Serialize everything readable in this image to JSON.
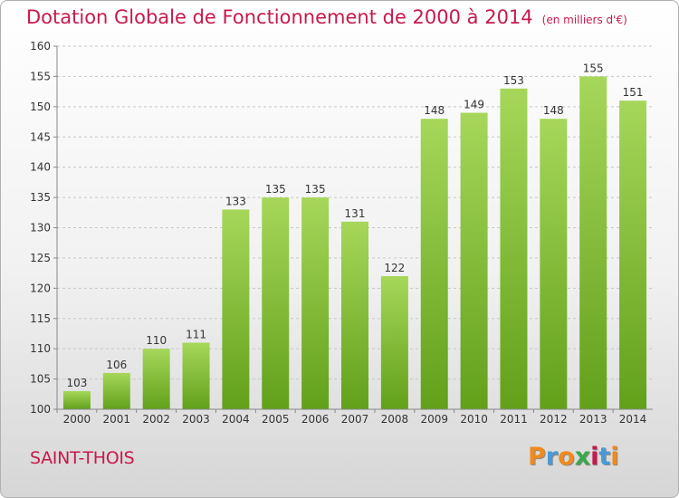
{
  "title": "Dotation Globale de Fonctionnement de 2000 à 2014",
  "unit": "(en milliers d'€)",
  "location": "SAINT-THOIS",
  "logo": {
    "letters": [
      "P",
      "r",
      "o",
      "x",
      "i",
      "t",
      "i"
    ],
    "colors": [
      "#f08a1c",
      "#4a9ad8",
      "#f08a1c",
      "#3aa84a",
      "#c8194c",
      "#4a9ad8",
      "#f08a1c"
    ]
  },
  "colors": {
    "bar_top": "#a6d75a",
    "bar_bottom": "#62a01a",
    "accent": "#c8194c",
    "grid": "#c8c8c8"
  },
  "chart_data": {
    "type": "bar",
    "categories": [
      "2000",
      "2001",
      "2002",
      "2003",
      "2004",
      "2005",
      "2006",
      "2007",
      "2008",
      "2009",
      "2010",
      "2011",
      "2012",
      "2013",
      "2014"
    ],
    "values": [
      103,
      106,
      110,
      111,
      133,
      135,
      135,
      131,
      122,
      148,
      149,
      153,
      148,
      155,
      151
    ],
    "data_labels": [
      "103",
      "106",
      "110",
      "111",
      "133",
      "135",
      "135",
      "131",
      "122",
      "148",
      "149",
      "153",
      "148",
      "155",
      "151"
    ],
    "title": "Dotation Globale de Fonctionnement de 2000 à 2014",
    "ylim": [
      100,
      160
    ],
    "yticks": [
      100,
      105,
      110,
      115,
      120,
      125,
      130,
      135,
      140,
      145,
      150,
      155,
      160
    ],
    "grid": true
  }
}
